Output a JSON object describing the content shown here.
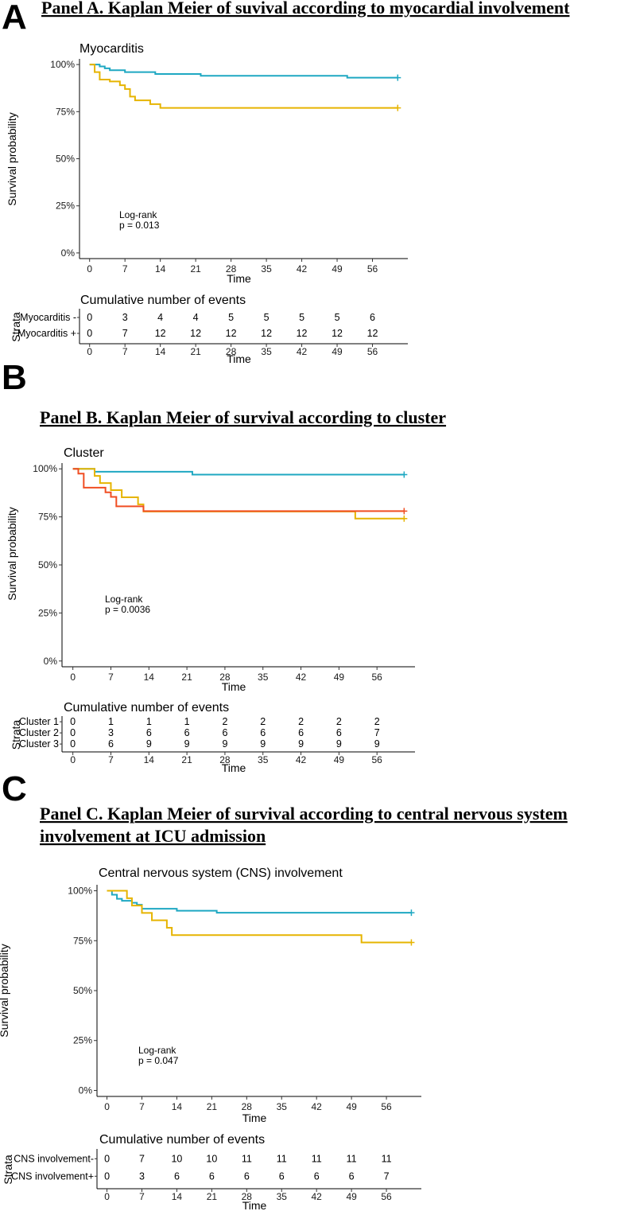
{
  "panel_headings": [
    {
      "letter": "A",
      "title": "Panel A. Kaplan Meier of suvival according to myocardial involvement"
    },
    {
      "letter": "B",
      "title": "Panel B. Kaplan Meier of survival according to cluster"
    },
    {
      "letter": "C",
      "title_line1": "Panel C. Kaplan Meier of survival according to central nervous system",
      "title_line2": "involvement  at ICU admission"
    }
  ],
  "chart_data": [
    {
      "type": "line",
      "title": "Myocarditis",
      "xlabel": "Time",
      "ylabel": "Survival probability",
      "xlim": [
        -2,
        63
      ],
      "ylim": [
        -0.03,
        1.03
      ],
      "x_ticks": [
        "0",
        "7",
        "14",
        "21",
        "28",
        "35",
        "42",
        "49",
        "56"
      ],
      "y_ticks": [
        "0%",
        "25%",
        "50%",
        "75%",
        "100%"
      ],
      "annotation": [
        "Log-rank",
        "p = 0.013"
      ],
      "series": [
        {
          "name": "Myocarditis -",
          "color": "#1fa8c2",
          "steps": [
            [
              0,
              1.0
            ],
            [
              2,
              0.99
            ],
            [
              3,
              0.98
            ],
            [
              4,
              0.97
            ],
            [
              7,
              0.96
            ],
            [
              13,
              0.95
            ],
            [
              22,
              0.94
            ],
            [
              51,
              0.93
            ],
            [
              61,
              0.93
            ]
          ],
          "censor": [
            61,
            0.93
          ]
        },
        {
          "name": "Myocarditis +",
          "color": "#e6b400",
          "steps": [
            [
              0,
              1.0
            ],
            [
              1,
              0.96
            ],
            [
              2,
              0.92
            ],
            [
              4,
              0.91
            ],
            [
              6,
              0.89
            ],
            [
              7,
              0.87
            ],
            [
              8,
              0.83
            ],
            [
              9,
              0.81
            ],
            [
              12,
              0.79
            ],
            [
              14,
              0.77
            ],
            [
              61,
              0.77
            ]
          ],
          "censor": [
            61,
            0.77
          ]
        }
      ],
      "risk_table": {
        "title": "Cumulative number of events",
        "strata_label": "Strata",
        "xlabel": "Time",
        "x_ticks": [
          "0",
          "7",
          "14",
          "21",
          "28",
          "35",
          "42",
          "49",
          "56"
        ],
        "rows": [
          {
            "label": "Myocarditis -",
            "color": "#1fa8c2",
            "values": [
              "0",
              "3",
              "4",
              "4",
              "5",
              "5",
              "5",
              "5",
              "6"
            ]
          },
          {
            "label": "Myocarditis +",
            "color": "#e6b400",
            "values": [
              "0",
              "7",
              "12",
              "12",
              "12",
              "12",
              "12",
              "12",
              "12"
            ]
          }
        ]
      }
    },
    {
      "type": "line",
      "title": "Cluster",
      "xlabel": "Time",
      "ylabel": "Survival probability",
      "xlim": [
        -2,
        63
      ],
      "ylim": [
        -0.03,
        1.03
      ],
      "x_ticks": [
        "0",
        "7",
        "14",
        "21",
        "28",
        "35",
        "42",
        "49",
        "56"
      ],
      "y_ticks": [
        "0%",
        "25%",
        "50%",
        "75%",
        "100%"
      ],
      "annotation": [
        "Log-rank",
        "p = 0.0036"
      ],
      "series": [
        {
          "name": "Cluster 1",
          "color": "#1fa8c2",
          "steps": [
            [
              0,
              1.0
            ],
            [
              4,
              0.985
            ],
            [
              22,
              0.97
            ],
            [
              61,
              0.97
            ]
          ],
          "censor": [
            61,
            0.97
          ]
        },
        {
          "name": "Cluster 2",
          "color": "#e6b400",
          "steps": [
            [
              0,
              1.0
            ],
            [
              4,
              0.963
            ],
            [
              5,
              0.926
            ],
            [
              7,
              0.889
            ],
            [
              9,
              0.852
            ],
            [
              12,
              0.815
            ],
            [
              13,
              0.778
            ],
            [
              52,
              0.741
            ],
            [
              61,
              0.741
            ]
          ],
          "censor": [
            61,
            0.741
          ]
        },
        {
          "name": "Cluster 3",
          "color": "#f04e23",
          "steps": [
            [
              0,
              1.0
            ],
            [
              1,
              0.975
            ],
            [
              2,
              0.902
            ],
            [
              6,
              0.878
            ],
            [
              7,
              0.854
            ],
            [
              8,
              0.805
            ],
            [
              13,
              0.78
            ],
            [
              61,
              0.78
            ]
          ],
          "censor": [
            61,
            0.78
          ]
        }
      ],
      "risk_table": {
        "title": "Cumulative number of events",
        "strata_label": "Strata",
        "xlabel": "Time",
        "x_ticks": [
          "0",
          "7",
          "14",
          "21",
          "28",
          "35",
          "42",
          "49",
          "56"
        ],
        "rows": [
          {
            "label": "Cluster 1",
            "color": "#1fa8c2",
            "values": [
              "0",
              "1",
              "1",
              "1",
              "2",
              "2",
              "2",
              "2",
              "2"
            ]
          },
          {
            "label": "Cluster 2",
            "color": "#e6b400",
            "values": [
              "0",
              "3",
              "6",
              "6",
              "6",
              "6",
              "6",
              "6",
              "7"
            ]
          },
          {
            "label": "Cluster 3",
            "color": "#f04e23",
            "values": [
              "0",
              "6",
              "9",
              "9",
              "9",
              "9",
              "9",
              "9",
              "9"
            ]
          }
        ]
      }
    },
    {
      "type": "line",
      "title": "Central nervous system (CNS) involvement",
      "xlabel": "Time",
      "ylabel": "Survival probability",
      "xlim": [
        -2,
        63
      ],
      "ylim": [
        -0.03,
        1.03
      ],
      "x_ticks": [
        "0",
        "7",
        "14",
        "21",
        "28",
        "35",
        "42",
        "49",
        "56"
      ],
      "y_ticks": [
        "0%",
        "25%",
        "50%",
        "75%",
        "100%"
      ],
      "annotation": [
        "Log-rank",
        "p = 0.047"
      ],
      "series": [
        {
          "name": "CNS involvement-",
          "color": "#1fa8c2",
          "steps": [
            [
              0,
              1.0
            ],
            [
              1,
              0.98
            ],
            [
              2,
              0.96
            ],
            [
              3,
              0.95
            ],
            [
              5,
              0.94
            ],
            [
              6,
              0.93
            ],
            [
              7,
              0.91
            ],
            [
              14,
              0.9
            ],
            [
              22,
              0.89
            ],
            [
              61,
              0.89
            ]
          ],
          "censor": [
            61,
            0.89
          ]
        },
        {
          "name": "CNS involvement+",
          "color": "#e6b400",
          "steps": [
            [
              0,
              1.0
            ],
            [
              4,
              0.963
            ],
            [
              5,
              0.926
            ],
            [
              7,
              0.889
            ],
            [
              9,
              0.852
            ],
            [
              12,
              0.815
            ],
            [
              13,
              0.778
            ],
            [
              51,
              0.741
            ],
            [
              61,
              0.741
            ]
          ],
          "censor": [
            61,
            0.741
          ]
        }
      ],
      "risk_table": {
        "title": "Cumulative number of events",
        "strata_label": "Strata",
        "xlabel": "Time",
        "x_ticks": [
          "0",
          "7",
          "14",
          "21",
          "28",
          "35",
          "42",
          "49",
          "56"
        ],
        "rows": [
          {
            "label": "CNS involvement-",
            "color": "#1fa8c2",
            "values": [
              "0",
              "7",
              "10",
              "10",
              "11",
              "11",
              "11",
              "11",
              "11"
            ]
          },
          {
            "label": "CNS involvement+",
            "color": "#e6b400",
            "values": [
              "0",
              "3",
              "6",
              "6",
              "6",
              "6",
              "6",
              "6",
              "7"
            ]
          }
        ]
      }
    }
  ]
}
